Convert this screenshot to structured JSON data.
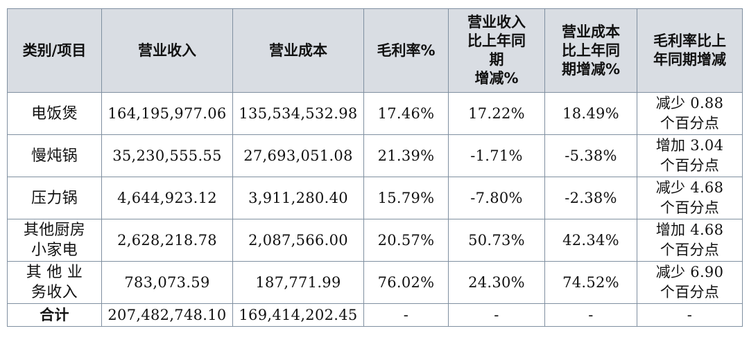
{
  "table": {
    "headers": [
      "类别/项目",
      "营业收入",
      "营业成本",
      "毛利率%",
      "营业收入\n比上年同\n期\n增减%",
      "营业成本\n比上年同\n期增减%",
      "毛利率比上\n年同期增减"
    ],
    "rows": [
      {
        "category": "电饭煲",
        "revenue": "164,195,977.06",
        "cost": "135,534,532.98",
        "margin": "17.46%",
        "revenue_change": "17.22%",
        "cost_change": "18.49%",
        "margin_change": "减少 0.88\n个百分点"
      },
      {
        "category": "慢炖锅",
        "revenue": "35,230,555.55",
        "cost": "27,693,051.08",
        "margin": "21.39%",
        "revenue_change": "-1.71%",
        "cost_change": "-5.38%",
        "margin_change": "增加 3.04\n个百分点"
      },
      {
        "category": "压力锅",
        "revenue": "4,644,923.12",
        "cost": "3,911,280.40",
        "margin": "15.79%",
        "revenue_change": "-7.80%",
        "cost_change": "-2.38%",
        "margin_change": "减少 4.68\n个百分点"
      },
      {
        "category": "其他厨房\n小家电",
        "revenue": "2,628,218.78",
        "cost": "2,087,566.00",
        "margin": "20.57%",
        "revenue_change": "50.73%",
        "cost_change": "42.34%",
        "margin_change": "增加 4.68\n个百分点"
      },
      {
        "category": "其 他 业\n务收入",
        "revenue": "783,073.59",
        "cost": "187,771.99",
        "margin": "76.02%",
        "revenue_change": "24.30%",
        "cost_change": "74.52%",
        "margin_change": "减少 6.90\n个百分点"
      }
    ],
    "total": {
      "label": "合计",
      "revenue": "207,482,748.10",
      "cost": "169,414,202.45",
      "margin": "-",
      "revenue_change": "-",
      "cost_change": "-",
      "margin_change": "-"
    }
  }
}
